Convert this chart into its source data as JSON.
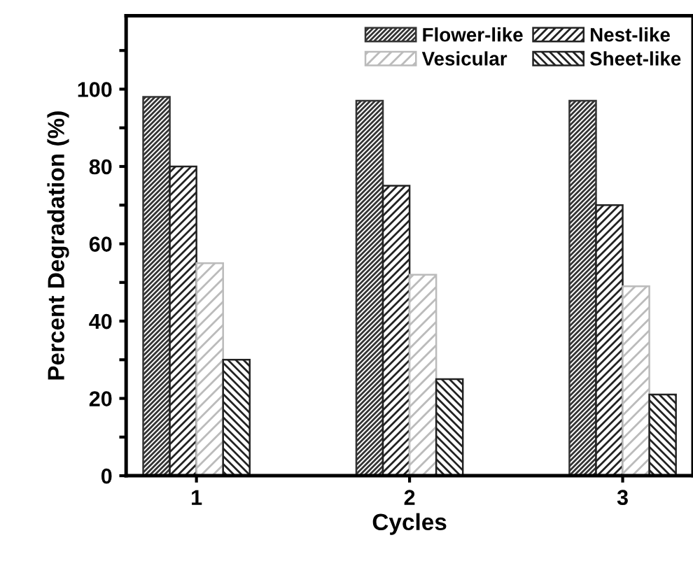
{
  "chart_data": {
    "type": "bar",
    "xlabel": "Cycles",
    "ylabel": "Percent Degradation (%)",
    "categories": [
      "1",
      "2",
      "3"
    ],
    "series": [
      {
        "name": "Flower-like",
        "color": "#333333",
        "values": [
          98,
          97,
          97
        ]
      },
      {
        "name": "Nest-like",
        "color": "#222222",
        "values": [
          80,
          75,
          70
        ]
      },
      {
        "name": "Vesicular",
        "color": "#bbbbbb",
        "values": [
          55,
          52,
          49
        ]
      },
      {
        "name": "Sheet-like",
        "color": "#222222",
        "values": [
          30,
          25,
          21
        ]
      }
    ],
    "ylim": [
      0,
      119
    ],
    "yticks": [
      0,
      {
        "value": 10,
        "label": null
      },
      20,
      {
        "value": 30,
        "label": null
      },
      40,
      {
        "value": 50,
        "label": null
      },
      60,
      {
        "value": 70,
        "label": null
      },
      80,
      {
        "value": 90,
        "label": null
      },
      100,
      {
        "value": 110,
        "label": null
      }
    ],
    "legend": "top right",
    "grid": false
  }
}
